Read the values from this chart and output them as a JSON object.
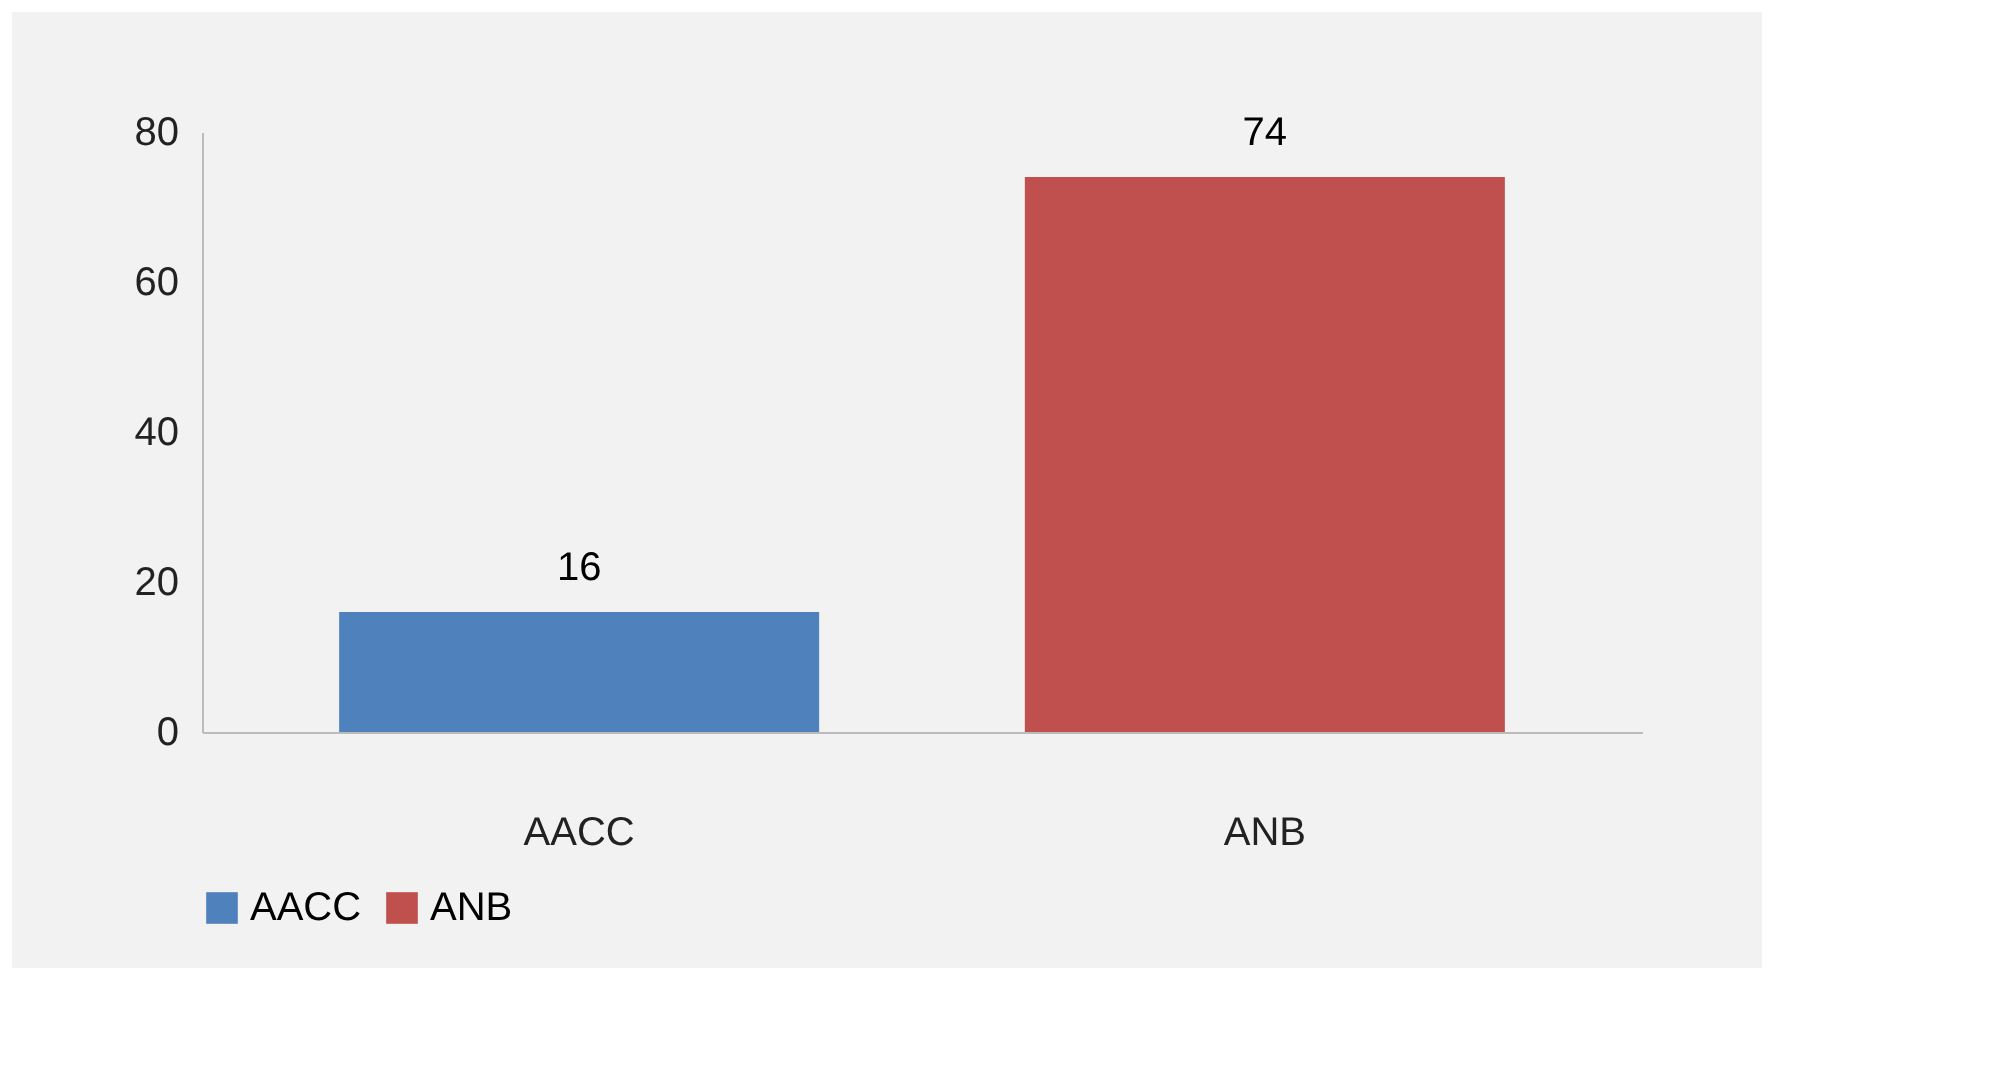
{
  "chart_data": {
    "type": "bar",
    "categories": [
      "AACC",
      "ANB"
    ],
    "series": [
      {
        "name": "AACC",
        "color": "#4f81bd",
        "values": [
          16,
          null
        ]
      },
      {
        "name": "ANB",
        "color": "#c0504d",
        "values": [
          null,
          74
        ]
      }
    ],
    "ylim": [
      0,
      80
    ],
    "yticks": [
      0,
      20,
      40,
      60,
      80
    ],
    "grid": false,
    "legend": "bottom",
    "data_labels": true
  }
}
